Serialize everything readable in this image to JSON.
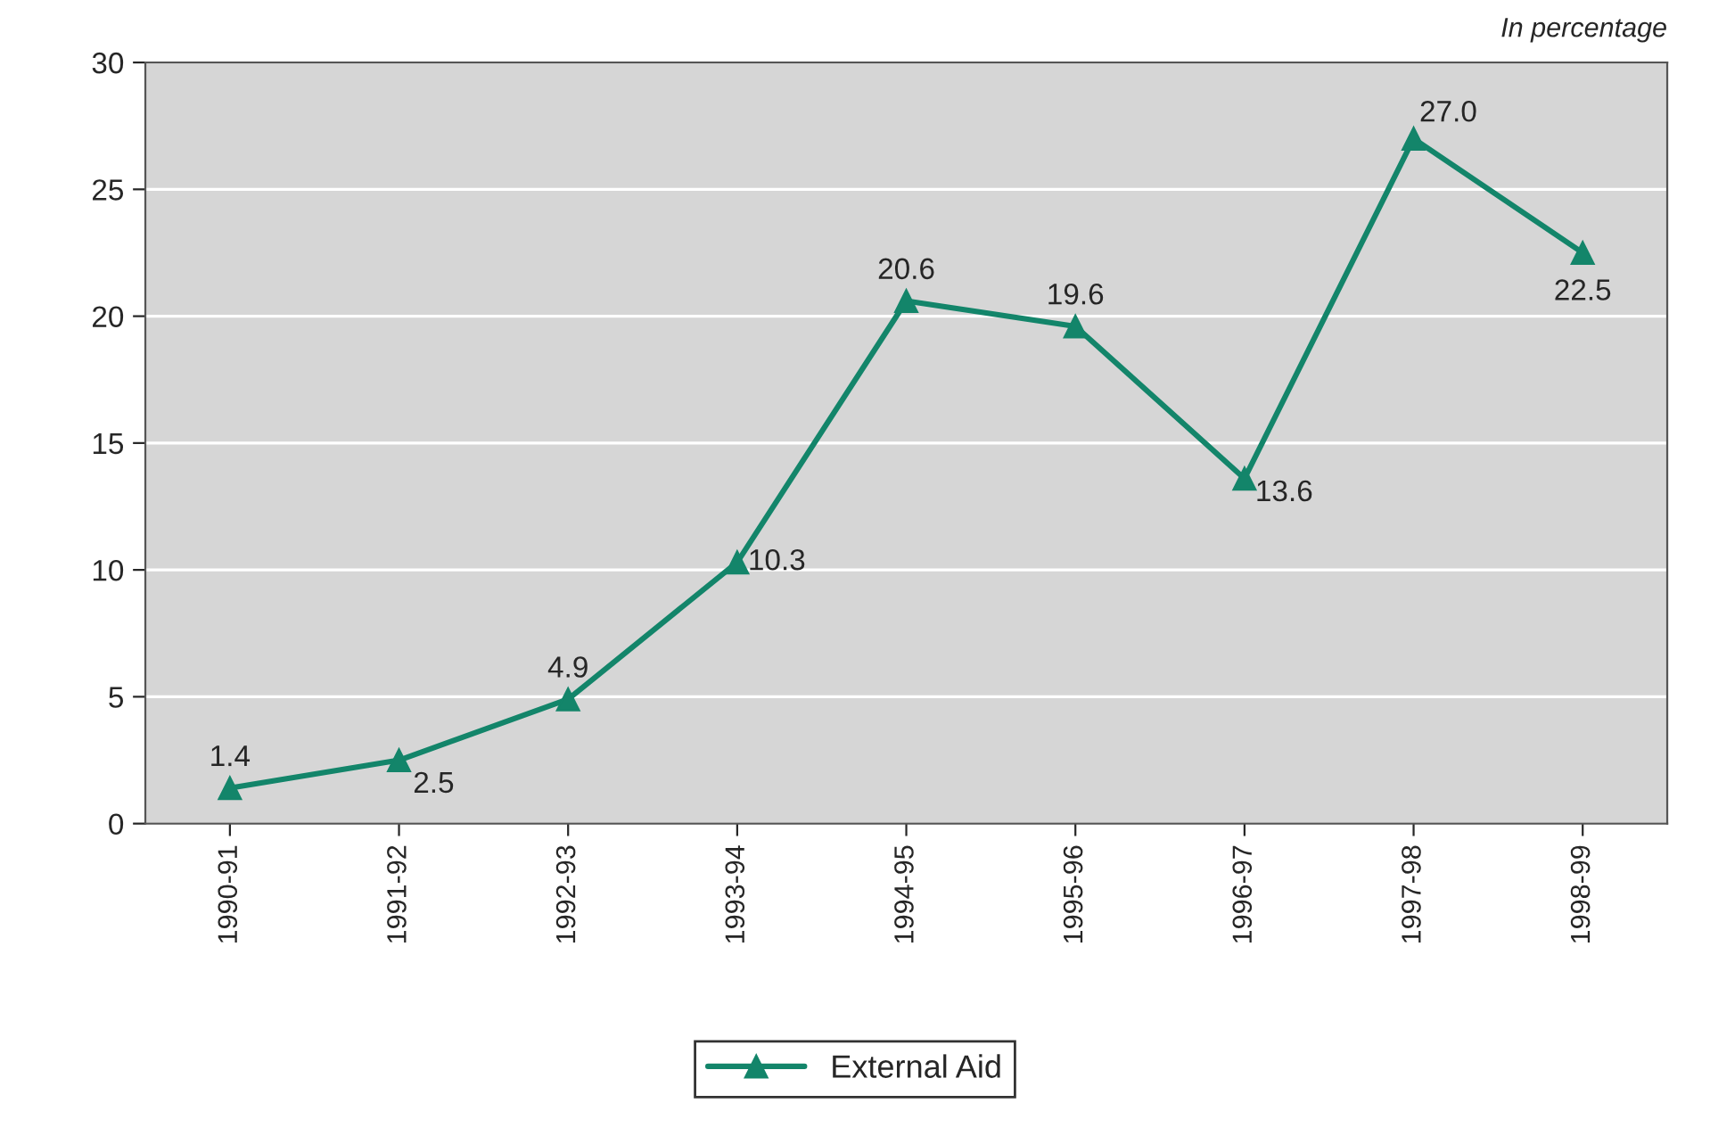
{
  "chart_data": {
    "type": "line",
    "categories": [
      "1990-91",
      "1991-92",
      "1992-93",
      "1993-94",
      "1994-95",
      "1995-96",
      "1996-97",
      "1997-98",
      "1998-99"
    ],
    "series": [
      {
        "name": "External Aid",
        "color": "#13856a",
        "values": [
          1.4,
          2.5,
          4.9,
          10.3,
          20.6,
          19.6,
          13.6,
          27.0,
          22.5
        ],
        "value_labels": [
          "1.4",
          "2.5",
          "4.9",
          "10.3",
          "20.6",
          "19.6",
          "13.6",
          "27.0",
          "22.5"
        ]
      }
    ],
    "ylim": [
      0,
      30
    ],
    "yticks": [
      0,
      5,
      10,
      15,
      20,
      25,
      30
    ],
    "grid": "y",
    "legend": "bottom",
    "marker": "triangle",
    "line_style": "solid",
    "annotations": [
      "In percentage"
    ]
  }
}
